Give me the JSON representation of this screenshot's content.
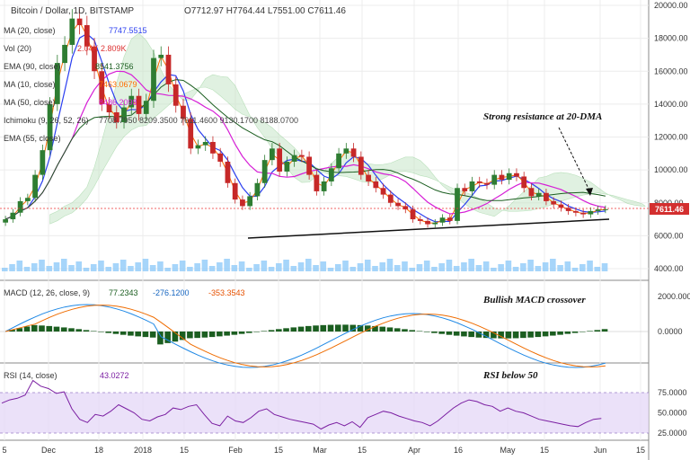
{
  "header": {
    "symbol": "Bitcoin / Dollar, 1D, BITSTAMP",
    "ohlc": "O7712.97  H7764.44  L7551.00  C7611.46"
  },
  "indicators": [
    {
      "label": "MA (20, close)",
      "value": "7747.5515",
      "color": "#2b3ff0"
    },
    {
      "label": "Vol (20)",
      "value": "2.04K  2.809K",
      "color": "#d33"
    },
    {
      "label": "EMA (90, close)",
      "value": "8541.3756",
      "color": "#1b5e20"
    },
    {
      "label": "MA (10, close)",
      "value": "7463.0679",
      "color": "#ff6d00"
    },
    {
      "label": "MA (50, close)",
      "value": "8486.2098",
      "color": "#d61fd6"
    },
    {
      "label": "Ichimoku (9, 26, 52, 26)",
      "value": "7708.7950  8209.3500  7611.4600  9130.1700  8188.0700",
      "color": "#444"
    },
    {
      "label": "EMA (55, close)",
      "value": "",
      "color": "#aaa"
    }
  ],
  "annotations": {
    "resistance": "Strong resistance at 20-DMA",
    "macd": "Bullish MACD crossover",
    "rsi": "RSI below 50"
  },
  "macd_panel": {
    "label": "MACD (12, 26, close, 9)",
    "values": [
      "77.2343",
      "-276.1200",
      "-353.3543"
    ]
  },
  "rsi_panel": {
    "label": "RSI (14, close)",
    "value": "43.0272"
  },
  "price_tag": "7611.46",
  "chart_data": {
    "type": "candlestick",
    "price_axis": {
      "ticks": [
        "20000.00",
        "18000.00",
        "16000.00",
        "14000.00",
        "12000.00",
        "10000.00",
        "8000.00",
        "6000.00",
        "4000.00"
      ]
    },
    "macd_axis": {
      "ticks": [
        "2000.0000",
        "0.0000"
      ]
    },
    "rsi_axis": {
      "ticks": [
        "75.0000",
        "50.0000",
        "25.0000"
      ]
    },
    "x_ticks": [
      "5",
      "Dec",
      "18",
      "2018",
      "15",
      "Feb",
      "15",
      "Mar",
      "15",
      "Apr",
      "16",
      "May",
      "15",
      "Jun",
      "15"
    ],
    "close_series": [
      7000,
      7400,
      8100,
      8300,
      9700,
      11200,
      14000,
      16500,
      17600,
      19200,
      18800,
      17500,
      16000,
      14000,
      13500,
      12900,
      13800,
      14500,
      13400,
      14200,
      16800,
      17000,
      15200,
      13900,
      13100,
      11300,
      11500,
      11700,
      11000,
      10500,
      9200,
      8200,
      7800,
      8400,
      9200,
      10600,
      11300,
      9900,
      10500,
      10900,
      10800,
      9700,
      8700,
      9300,
      10100,
      11000,
      11300,
      10800,
      9700,
      9300,
      8900,
      8500,
      8000,
      7800,
      7600,
      7000,
      6900,
      6700,
      6800,
      7100,
      6900,
      8900,
      8700,
      9300,
      9200,
      9100,
      9700,
      9400,
      9800,
      9600,
      8900,
      8400,
      8600,
      8100,
      7900,
      7700,
      7500,
      7400,
      7300,
      7500,
      7600,
      7611
    ],
    "rsi_series": [
      62,
      66,
      68,
      72,
      90,
      83,
      80,
      74,
      76,
      55,
      42,
      38,
      48,
      46,
      52,
      60,
      55,
      50,
      42,
      40,
      45,
      48,
      56,
      54,
      58,
      60,
      48,
      37,
      34,
      46,
      40,
      38,
      44,
      52,
      55,
      48,
      45,
      42,
      40,
      38,
      36,
      30,
      35,
      38,
      34,
      39,
      32,
      44,
      48,
      52,
      50,
      46,
      43,
      40,
      38,
      34,
      40,
      48,
      56,
      62,
      66,
      64,
      60,
      58,
      52,
      56,
      52,
      50,
      46,
      42,
      40,
      38,
      36,
      34,
      33,
      38,
      42,
      43
    ]
  }
}
